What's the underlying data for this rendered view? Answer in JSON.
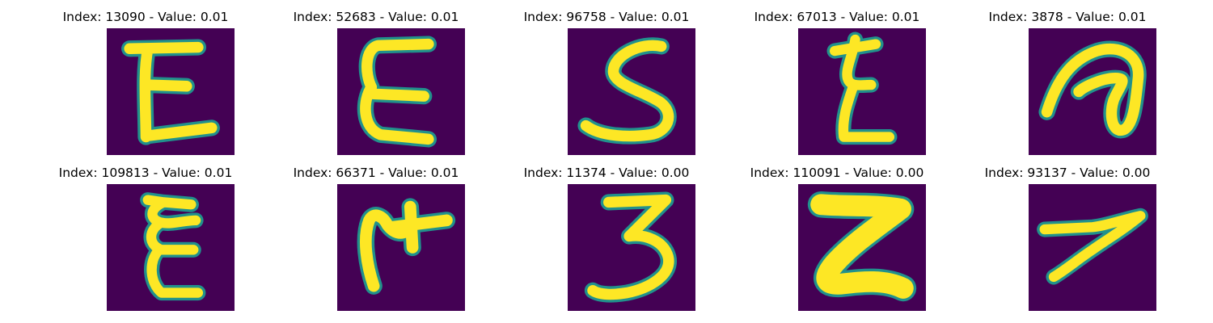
{
  "colors": {
    "background": "#440154",
    "stroke": "#fde725",
    "edge": "#21918c",
    "mid": "#35b779"
  },
  "panels": [
    {
      "title": "Index: 13090 - Value: 0.01"
    },
    {
      "title": "Index: 52683 - Value: 0.01"
    },
    {
      "title": "Index: 96758 - Value: 0.01"
    },
    {
      "title": "Index: 67013 - Value: 0.01"
    },
    {
      "title": "Index: 3878 - Value: 0.01"
    },
    {
      "title": "Index: 109813 - Value: 0.01"
    },
    {
      "title": "Index: 66371 - Value: 0.01"
    },
    {
      "title": "Index: 11374 - Value: 0.00"
    },
    {
      "title": "Index: 110091 - Value: 0.00"
    },
    {
      "title": "Index: 93137 - Value: 0.00"
    }
  ]
}
